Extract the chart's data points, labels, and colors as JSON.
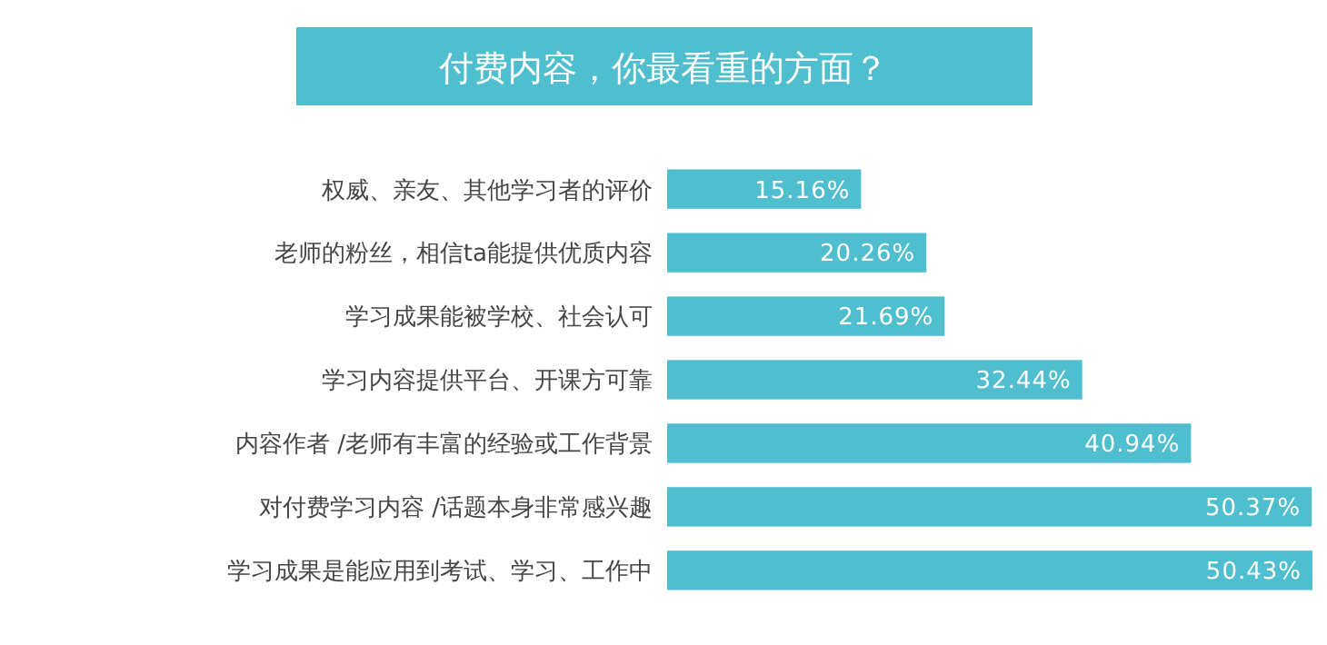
{
  "chart_data": {
    "type": "bar",
    "orientation": "horizontal",
    "title": "付费内容，你最看重的方面？",
    "categories": [
      "权威、亲友、其他学习者的评价",
      "老师的粉丝，相信ta能提供优质内容",
      "学习成果能被学校、社会认可",
      "学习内容提供平台、开课方可靠",
      "内容作者 /老师有丰富的经验或工作背景",
      "对付费学习内容 /话题本身非常感兴趣",
      "学习成果是能应用到考试、学习、工作中"
    ],
    "values": [
      15.16,
      20.26,
      21.69,
      32.44,
      40.94,
      50.37,
      50.43
    ],
    "value_labels": [
      "15.16%",
      "20.26%",
      "21.69%",
      "32.44%",
      "40.94%",
      "50.37%",
      "50.43%"
    ],
    "color": "#4fbfcf"
  }
}
